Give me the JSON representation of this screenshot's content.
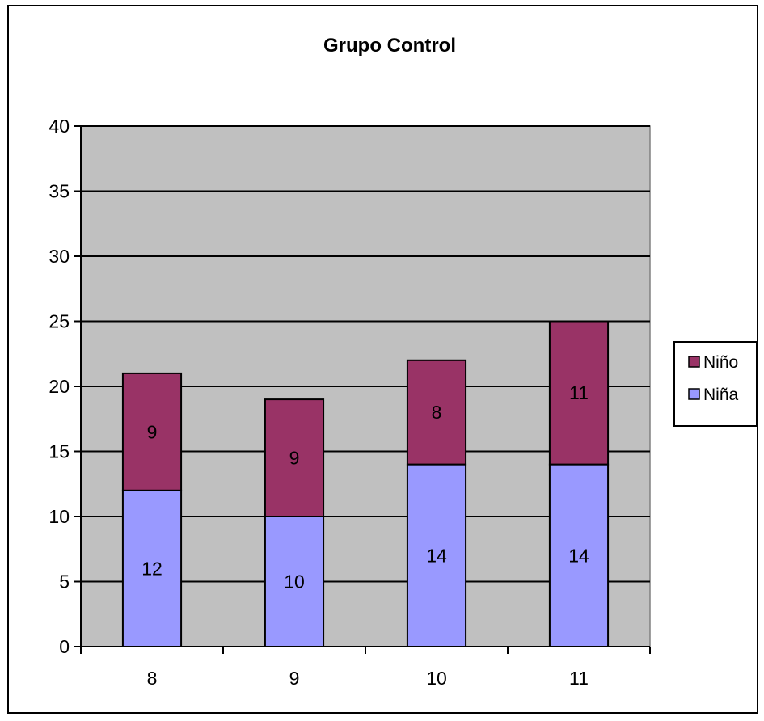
{
  "chart_data": {
    "type": "bar",
    "stacked": true,
    "title": "Grupo Control",
    "categories": [
      "8",
      "9",
      "10",
      "11"
    ],
    "series": [
      {
        "name": "Niña",
        "color": "#9999ff",
        "values": [
          12,
          10,
          14,
          14
        ]
      },
      {
        "name": "Niño",
        "color": "#993366",
        "values": [
          9,
          9,
          8,
          11
        ]
      }
    ],
    "ylim": [
      0,
      40
    ],
    "yticks": [
      0,
      5,
      10,
      15,
      20,
      25,
      30,
      35,
      40
    ],
    "grid": true,
    "plot_background": "#c0c0c0",
    "legend_position": "right"
  }
}
